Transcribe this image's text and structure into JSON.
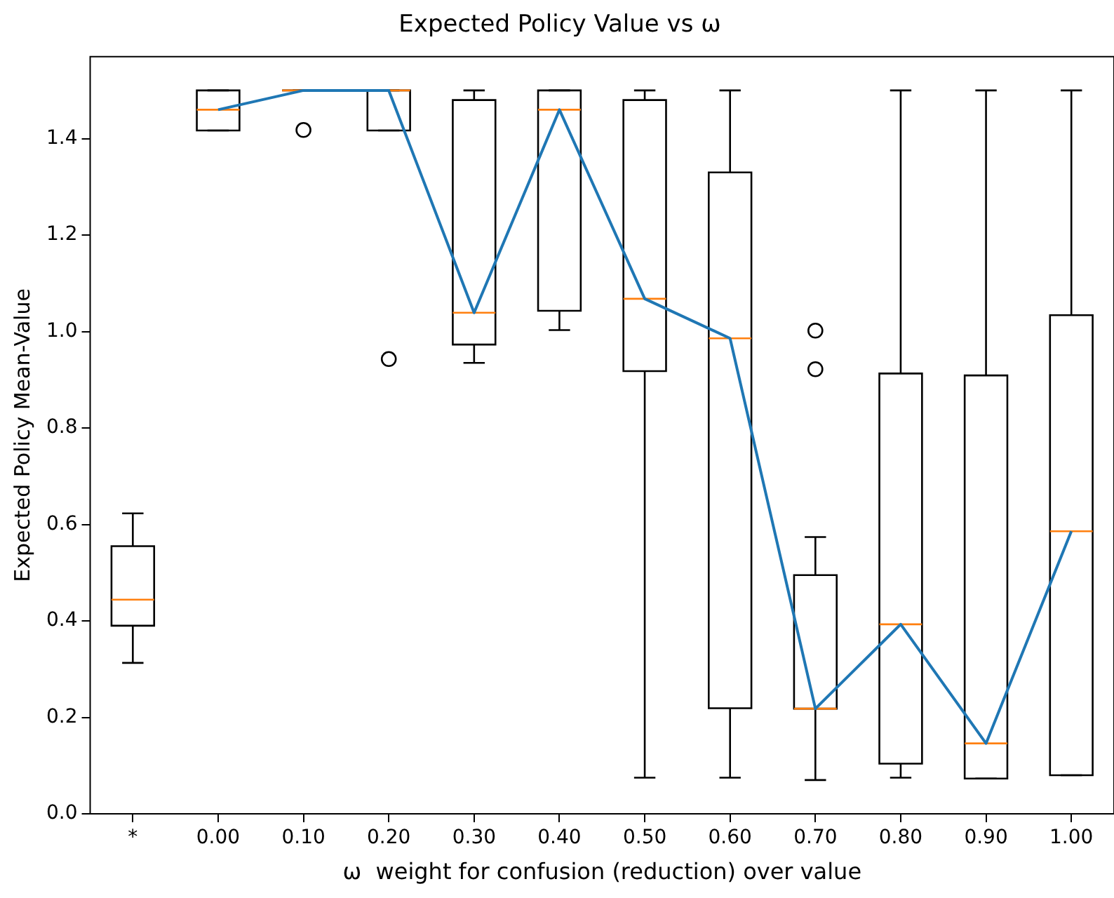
{
  "chart_data": {
    "type": "box",
    "title": "Expected Policy Value vs ω",
    "xlabel": "ω  weight for confusion (reduction) over value",
    "ylabel": "Expected Policy Mean-Value",
    "categories": [
      "*",
      "0.00",
      "0.10",
      "0.20",
      "0.30",
      "0.40",
      "0.50",
      "0.60",
      "0.70",
      "0.80",
      "0.90",
      "1.00"
    ],
    "boxes": [
      {
        "low": 0.313,
        "q1": 0.39,
        "median": 0.444,
        "q3": 0.555,
        "high": 0.623
      },
      {
        "low": 1.417,
        "q1": 1.417,
        "median": 1.46,
        "q3": 1.5,
        "high": 1.5
      },
      {
        "low": 1.5,
        "q1": 1.5,
        "median": 1.5,
        "q3": 1.5,
        "high": 1.5,
        "outliers": [
          1.418
        ]
      },
      {
        "low": 1.417,
        "q1": 1.417,
        "median": 1.5,
        "q3": 1.5,
        "high": 1.5,
        "outliers": [
          0.943
        ]
      },
      {
        "low": 0.935,
        "q1": 0.973,
        "median": 1.039,
        "q3": 1.48,
        "high": 1.5
      },
      {
        "low": 1.003,
        "q1": 1.043,
        "median": 1.46,
        "q3": 1.5,
        "high": 1.5
      },
      {
        "low": 0.075,
        "q1": 0.918,
        "median": 1.068,
        "q3": 1.48,
        "high": 1.5
      },
      {
        "low": 0.075,
        "q1": 0.219,
        "median": 0.986,
        "q3": 1.33,
        "high": 1.5
      },
      {
        "low": 0.07,
        "q1": 0.218,
        "median": 0.218,
        "q3": 0.495,
        "high": 0.574,
        "outliers": [
          1.002,
          0.922
        ]
      },
      {
        "low": 0.075,
        "q1": 0.104,
        "median": 0.393,
        "q3": 0.913,
        "high": 1.5
      },
      {
        "low": 0.073,
        "q1": 0.073,
        "median": 0.146,
        "q3": 0.909,
        "high": 1.5
      },
      {
        "low": 0.08,
        "q1": 0.08,
        "median": 0.586,
        "q3": 1.034,
        "high": 1.5
      }
    ],
    "series": [
      {
        "type": "line",
        "color": "#1f77b4",
        "values": [
          null,
          1.46,
          1.5,
          1.5,
          1.039,
          1.46,
          1.068,
          0.986,
          0.218,
          0.393,
          0.146,
          0.586
        ]
      }
    ],
    "ylim": [
      0,
      1.57
    ],
    "yticks": [
      {
        "value": 0,
        "label": "0.0"
      },
      {
        "value": 0.2,
        "label": "0.2"
      },
      {
        "value": 0.4,
        "label": "0.4"
      },
      {
        "value": 0.6,
        "label": "0.6"
      },
      {
        "value": 0.8,
        "label": "0.8"
      },
      {
        "value": 1,
        "label": "1.0"
      },
      {
        "value": 1.2,
        "label": "1.2"
      },
      {
        "value": 1.4,
        "label": "1.4"
      }
    ],
    "grid": false,
    "legend": false,
    "marker": "none",
    "line_style": "solid"
  }
}
